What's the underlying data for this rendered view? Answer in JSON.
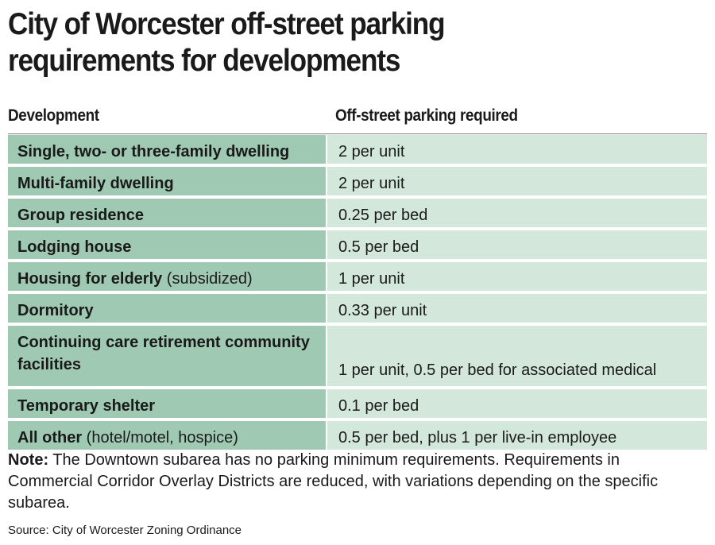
{
  "title": {
    "line1": "City of Worcester off-street parking",
    "line2": "requirements for developments"
  },
  "table": {
    "headers": {
      "development": "Development",
      "parking": "Off-street parking required"
    },
    "rows": [
      {
        "dev_bold": "Single, two- or three-family dwelling",
        "dev_extra": "",
        "requirement": "2 per unit"
      },
      {
        "dev_bold": "Multi-family dwelling",
        "dev_extra": "",
        "requirement": "2 per unit"
      },
      {
        "dev_bold": "Group residence",
        "dev_extra": "",
        "requirement": "0.25 per bed"
      },
      {
        "dev_bold": "Lodging house",
        "dev_extra": "",
        "requirement": "0.5 per bed"
      },
      {
        "dev_bold": "Housing for elderly",
        "dev_extra": " (subsidized)",
        "requirement": "1 per unit"
      },
      {
        "dev_bold": "Dormitory",
        "dev_extra": "",
        "requirement": "0.33 per unit"
      },
      {
        "dev_bold": "Continuing care retirement community facilities",
        "dev_extra": "",
        "requirement": "1 per unit, 0.5 per bed for associated medical"
      },
      {
        "dev_bold": "Temporary shelter",
        "dev_extra": "",
        "requirement": "0.1 per bed"
      },
      {
        "dev_bold": "All other",
        "dev_extra": " (hotel/motel, hospice)",
        "requirement": "0.5 per bed, plus 1 per live-in employee"
      }
    ]
  },
  "note": {
    "label": "Note:",
    "text": " The Downtown subarea has no parking minimum requirements. Requirements in Commercial Corridor Overlay Districts are reduced, with variations depending on the specific subarea."
  },
  "source": "Source: City of Worcester Zoning Ordinance",
  "colors": {
    "development_cell": "#9fc9b2",
    "requirement_cell": "#d3e8da"
  }
}
